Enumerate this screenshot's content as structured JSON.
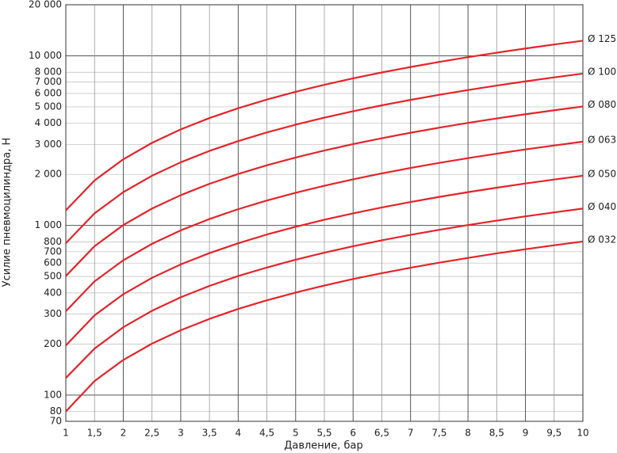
{
  "chart_data": {
    "type": "line",
    "x_label": "Давление, бар",
    "y_label": "Усилие пневмоцилиндра, Н",
    "y_scale": "log",
    "grid": true,
    "x": [
      1,
      1.5,
      2,
      2.5,
      3,
      3.5,
      4,
      4.5,
      5,
      5.5,
      6,
      6.5,
      7,
      7.5,
      8,
      8.5,
      9,
      9.5,
      10
    ],
    "series": [
      {
        "name": "Ø 125",
        "color": "#e5232b",
        "values": [
          1227,
          1841,
          2454,
          3068,
          3682,
          4295,
          4909,
          5522,
          6136,
          6750,
          7363,
          7977,
          8590,
          9204,
          9818,
          10431,
          11045,
          11658,
          12272
        ]
      },
      {
        "name": "Ø 100",
        "color": "#e5232b",
        "values": [
          785,
          1178,
          1571,
          1963,
          2356,
          2749,
          3142,
          3534,
          3927,
          4320,
          4712,
          5105,
          5498,
          5890,
          6283,
          6676,
          7069,
          7461,
          7854
        ]
      },
      {
        "name": "Ø 080",
        "color": "#e5232b",
        "values": [
          503,
          754,
          1005,
          1257,
          1508,
          1759,
          2011,
          2262,
          2513,
          2765,
          3016,
          3267,
          3519,
          3770,
          4021,
          4273,
          4524,
          4775,
          5027
        ]
      },
      {
        "name": "Ø 063",
        "color": "#e5232b",
        "values": [
          312,
          468,
          623,
          779,
          935,
          1091,
          1247,
          1403,
          1558,
          1714,
          1870,
          2026,
          2182,
          2338,
          2493,
          2649,
          2805,
          2961,
          3117
        ]
      },
      {
        "name": "Ø 050",
        "color": "#e5232b",
        "values": [
          196,
          295,
          393,
          491,
          589,
          687,
          785,
          884,
          982,
          1080,
          1178,
          1276,
          1374,
          1473,
          1571,
          1669,
          1767,
          1865,
          1963
        ]
      },
      {
        "name": "Ø 040",
        "color": "#e5232b",
        "values": [
          126,
          188,
          251,
          314,
          377,
          440,
          503,
          565,
          628,
          691,
          754,
          817,
          880,
          942,
          1005,
          1068,
          1131,
          1194,
          1257
        ]
      },
      {
        "name": "Ø 032",
        "color": "#e5232b",
        "values": [
          80,
          121,
          161,
          201,
          241,
          281,
          322,
          362,
          402,
          442,
          483,
          523,
          563,
          603,
          643,
          684,
          724,
          764,
          804
        ]
      }
    ],
    "xlim": [
      1,
      10
    ],
    "xticks": [
      1,
      {
        "value": 1.5,
        "label": "1,5"
      },
      2,
      {
        "value": 2.5,
        "label": "2,5"
      },
      3,
      {
        "value": 3.5,
        "label": "3,5"
      },
      4,
      {
        "value": 4.5,
        "label": "4,5"
      },
      5,
      {
        "value": 5.5,
        "label": "5,5"
      },
      6,
      {
        "value": 6.5,
        "label": "6,5"
      },
      7,
      {
        "value": 7.5,
        "label": "7,5"
      },
      8,
      {
        "value": 8.5,
        "label": "8,5"
      },
      9,
      {
        "value": 9.5,
        "label": "9,5"
      },
      10
    ],
    "ylim": [
      70,
      20000
    ],
    "yticks": [
      70,
      80,
      100,
      200,
      300,
      400,
      500,
      600,
      700,
      800,
      {
        "value": 1000,
        "label": "1 000"
      },
      {
        "value": 2000,
        "label": "2 000"
      },
      {
        "value": 3000,
        "label": "3 000"
      },
      {
        "value": 4000,
        "label": "4 000"
      },
      {
        "value": 5000,
        "label": "5 000"
      },
      {
        "value": 6000,
        "label": "6 000"
      },
      {
        "value": 7000,
        "label": "7 000"
      },
      {
        "value": 8000,
        "label": "8 000"
      },
      {
        "value": 10000,
        "label": "10 000"
      },
      {
        "value": 20000,
        "label": "20 000"
      }
    ]
  }
}
